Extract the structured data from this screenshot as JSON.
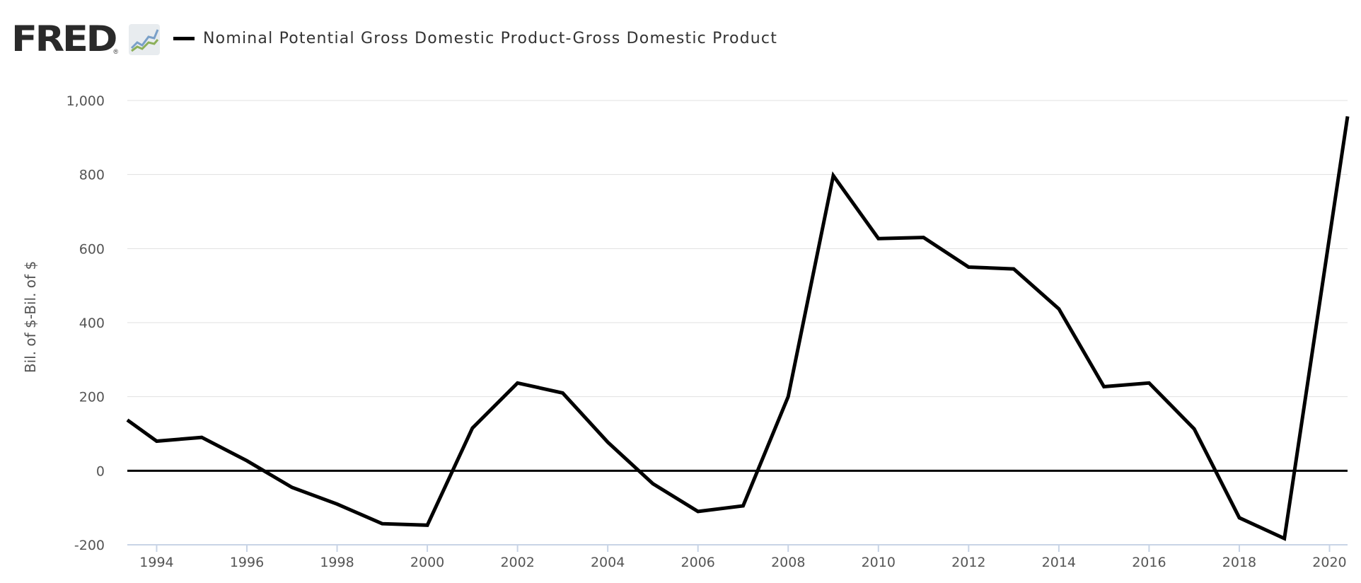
{
  "header": {
    "logo_text": "FRED",
    "logo_mark": "®",
    "logo_icon": "line-chart-icon",
    "legend_label": "Nominal Potential Gross Domestic Product-Gross Domestic Product"
  },
  "colors": {
    "series": "#000000",
    "grid": "#e0e0e0",
    "axis_text": "#555555",
    "baseline": "#000000",
    "x_axis": "#c8d4e6"
  },
  "chart_data": {
    "type": "line",
    "title": "",
    "xlabel": "",
    "ylabel": "Bil. of $-Bil. of $",
    "xlim": [
      1993.35,
      2020.4
    ],
    "ylim": [
      -200,
      1000
    ],
    "yticks": [
      -200,
      0,
      200,
      400,
      600,
      800,
      1000
    ],
    "ytick_labels": [
      "-200",
      "0",
      "200",
      "400",
      "600",
      "800",
      "1,000"
    ],
    "xticks": [
      1994,
      1996,
      1998,
      2000,
      2002,
      2004,
      2006,
      2008,
      2010,
      2012,
      2014,
      2016,
      2018,
      2020
    ],
    "xtick_labels": [
      "1994",
      "1996",
      "1998",
      "2000",
      "2002",
      "2004",
      "2006",
      "2008",
      "2010",
      "2012",
      "2014",
      "2016",
      "2018",
      "2020"
    ],
    "grid": true,
    "zero_line": true,
    "series": [
      {
        "name": "Nominal Potential Gross Domestic Product-Gross Domestic Product",
        "x": [
          1993.35,
          1994,
          1995,
          1996,
          1997,
          1998,
          1999,
          2000,
          2001,
          2002,
          2003,
          2004,
          2005,
          2006,
          2007,
          2008,
          2009,
          2010,
          2011,
          2012,
          2013,
          2014,
          2015,
          2016,
          2017,
          2018,
          2019,
          2020.4
        ],
        "y": [
          137,
          80,
          90,
          27,
          -45,
          -90,
          -143,
          -147,
          115,
          237,
          210,
          77,
          -35,
          -110,
          -95,
          200,
          797,
          627,
          630,
          550,
          545,
          437,
          227,
          237,
          113,
          -127,
          -183,
          957
        ]
      }
    ]
  }
}
